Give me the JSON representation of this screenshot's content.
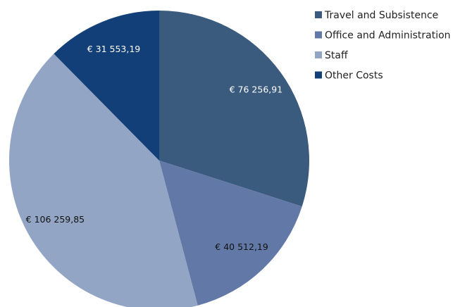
{
  "chart_data": {
    "type": "pie",
    "categories": [
      "Travel and Subsistence",
      "Office and Administration",
      "Staff",
      "Other Costs"
    ],
    "values": [
      76256.91,
      40512.19,
      106259.85,
      31553.19
    ],
    "value_labels": [
      "€ 76 256,91",
      "€ 40 512,19",
      "€ 106 259,85",
      "€ 31 553,19"
    ],
    "colors": [
      "#3a5a7e",
      "#6279a8",
      "#93a5c5",
      "#123f77"
    ],
    "legend": "top-right"
  }
}
